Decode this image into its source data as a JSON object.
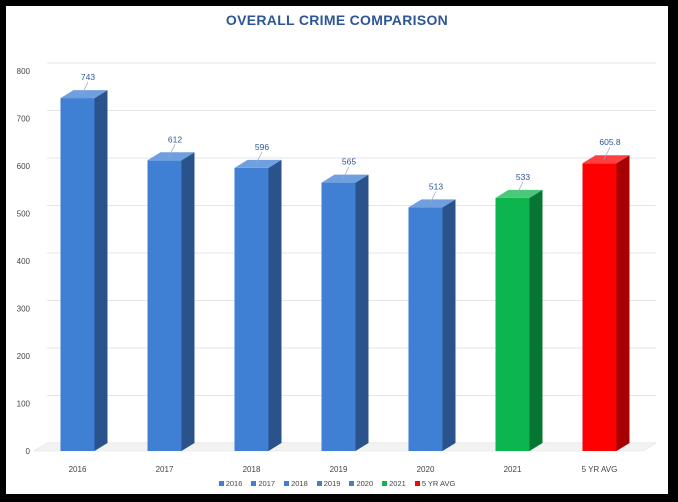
{
  "colors": {
    "blue": "#3f7fd4",
    "green": "#0cb54e",
    "red": "#ff0000",
    "title": "#2e5597",
    "data_label": "#2e5597",
    "grid": "#e6e6e6"
  },
  "chart_data": {
    "type": "bar",
    "title": "OVERALL CRIME COMPARISON",
    "xlabel": "",
    "ylabel": "",
    "categories": [
      "2016",
      "2017",
      "2018",
      "2019",
      "2020",
      "2021",
      "5 YR AVG"
    ],
    "values": [
      743,
      612,
      596,
      565,
      513,
      533,
      605.8
    ],
    "data_labels": [
      "743",
      "612",
      "596",
      "565",
      "513",
      "533",
      "605.8"
    ],
    "bar_colors": [
      "blue",
      "blue",
      "blue",
      "blue",
      "blue",
      "green",
      "red"
    ],
    "ylim": [
      0,
      800
    ],
    "yticks": [
      0,
      100,
      200,
      300,
      400,
      500,
      600,
      700,
      800
    ],
    "grid": true,
    "style": "3d-column",
    "legend": {
      "position": "bottom",
      "entries": [
        "2016",
        "2017",
        "2018",
        "2019",
        "2020",
        "2021",
        "5 YR AVG"
      ]
    }
  }
}
